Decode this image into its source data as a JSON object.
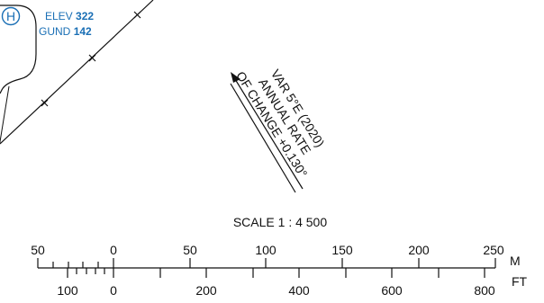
{
  "heliport": {
    "symbol": "H",
    "elev_label": "ELEV",
    "elev_value": "322",
    "gund_label": "GUND",
    "gund_value": "142",
    "color": "#1a6fb5"
  },
  "magnetic_variation": {
    "line1": "VAR 5°E (2020)",
    "line2": "ANNUAL RATE",
    "line3": "OF CHANGE +0.130°"
  },
  "scale": {
    "title": "SCALE 1 : 4 500",
    "meters_unit": "M",
    "feet_unit": "FT",
    "meters_labels": [
      "50",
      "0",
      "50",
      "100",
      "150",
      "200",
      "250"
    ],
    "feet_labels": [
      "100",
      "0",
      "200",
      "400",
      "600",
      "800"
    ]
  }
}
